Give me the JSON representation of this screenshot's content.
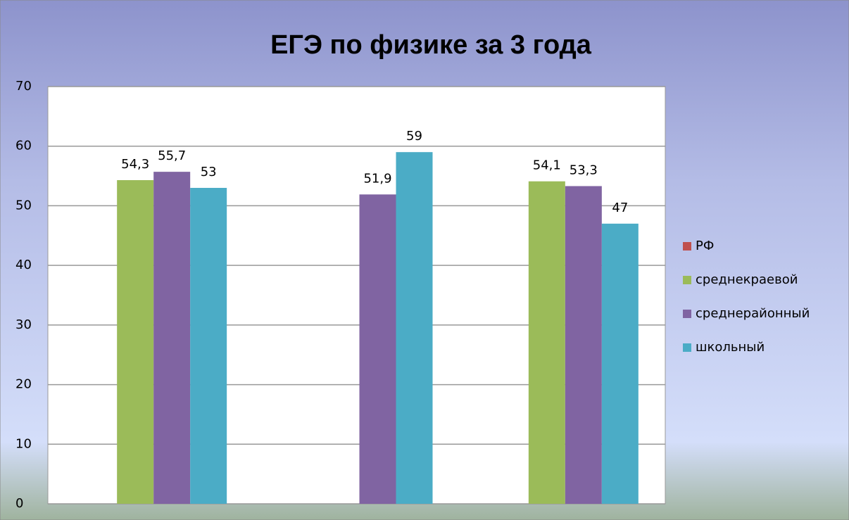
{
  "chart_data": {
    "type": "bar",
    "title": "ЕГЭ по физике за 3 года",
    "categories": [
      null,
      null,
      null
    ],
    "series": [
      {
        "name": "РФ",
        "color": "#c0504d",
        "values": [
          null,
          null,
          null
        ]
      },
      {
        "name": "среднекраевой",
        "color": "#9bbb59",
        "values": [
          54.3,
          null,
          54.1
        ],
        "value_labels": [
          "54,3",
          null,
          "54,1"
        ]
      },
      {
        "name": "среднерайонный",
        "color": "#8064a2",
        "values": [
          55.7,
          51.9,
          53.3
        ],
        "value_labels": [
          "55,7",
          "51,9",
          "53,3"
        ]
      },
      {
        "name": "школьный",
        "color": "#4bacc6",
        "values": [
          53,
          59,
          47
        ]
      }
    ],
    "ylim": [
      0,
      70
    ],
    "yticks": [
      0,
      10,
      20,
      30,
      40,
      50,
      60,
      70
    ],
    "grid": true,
    "legend": "right"
  }
}
